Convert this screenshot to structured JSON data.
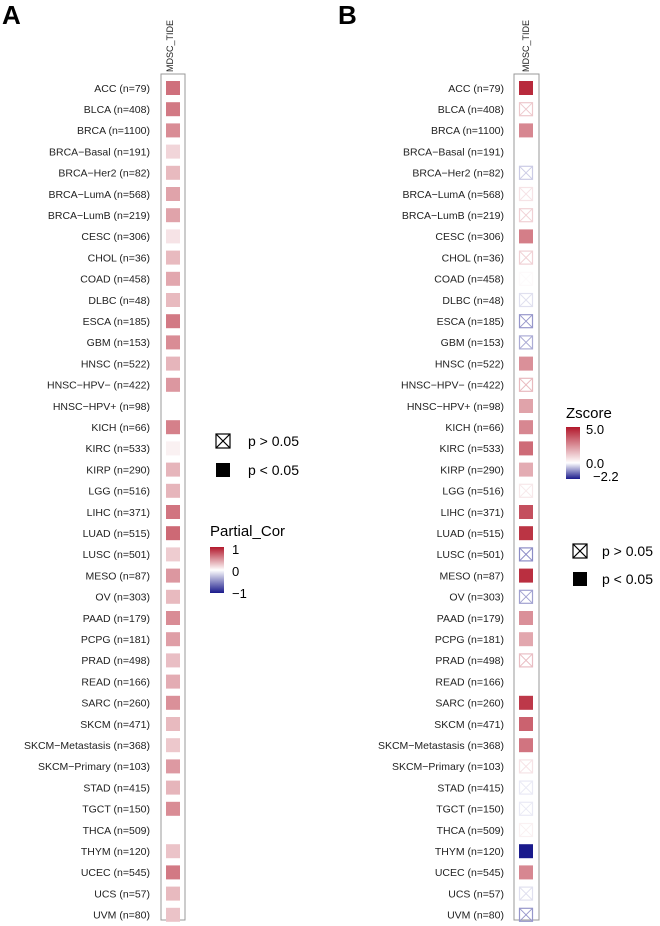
{
  "chart_data": [
    {
      "type": "heatmap",
      "panel": "A",
      "column": "MDSC_TIDE",
      "rows": [
        "ACC (n=79)",
        "BLCA (n=408)",
        "BRCA (n=1100)",
        "BRCA−Basal (n=191)",
        "BRCA−Her2 (n=82)",
        "BRCA−LumA (n=568)",
        "BRCA−LumB (n=219)",
        "CESC (n=306)",
        "CHOL (n=36)",
        "COAD (n=458)",
        "DLBC (n=48)",
        "ESCA (n=185)",
        "GBM (n=153)",
        "HNSC (n=522)",
        "HNSC−HPV− (n=422)",
        "HNSC−HPV+ (n=98)",
        "KICH (n=66)",
        "KIRC (n=533)",
        "KIRP (n=290)",
        "LGG (n=516)",
        "LIHC (n=371)",
        "LUAD (n=515)",
        "LUSC (n=501)",
        "MESO (n=87)",
        "OV (n=303)",
        "PAAD (n=179)",
        "PCPG (n=181)",
        "PRAD (n=498)",
        "READ (n=166)",
        "SARC (n=260)",
        "SKCM (n=471)",
        "SKCM−Metastasis (n=368)",
        "SKCM−Primary (n=103)",
        "STAD (n=415)",
        "TGCT (n=150)",
        "THCA (n=509)",
        "THYM (n=120)",
        "UCEC (n=545)",
        "UCS (n=57)",
        "UVM (n=80)"
      ],
      "values": [
        0.62,
        0.58,
        0.5,
        0.18,
        0.3,
        0.4,
        0.4,
        0.12,
        0.3,
        0.38,
        0.3,
        0.58,
        0.5,
        0.32,
        0.45,
        0.0,
        0.55,
        0.06,
        0.32,
        0.32,
        0.6,
        0.65,
        0.22,
        0.45,
        0.3,
        0.5,
        0.42,
        0.28,
        0.36,
        0.48,
        0.3,
        0.24,
        0.44,
        0.32,
        0.5,
        0.0,
        0.26,
        0.58,
        0.3,
        0.26
      ],
      "significant": [
        true,
        true,
        true,
        true,
        true,
        true,
        true,
        true,
        true,
        true,
        true,
        true,
        true,
        true,
        true,
        false,
        true,
        true,
        true,
        true,
        true,
        true,
        true,
        true,
        true,
        true,
        true,
        true,
        true,
        true,
        true,
        true,
        true,
        true,
        true,
        false,
        true,
        true,
        true,
        true
      ],
      "legend": {
        "title": "Partial_Cor",
        "ticks": [
          "1",
          "0",
          "−1"
        ],
        "range": [
          -1,
          1
        ],
        "key_nonsig": "p > 0.05",
        "key_sig": "p < 0.05"
      }
    },
    {
      "type": "heatmap",
      "panel": "B",
      "column": "MDSC_TIDE",
      "rows": [
        "ACC (n=79)",
        "BLCA (n=408)",
        "BRCA (n=1100)",
        "BRCA−Basal (n=191)",
        "BRCA−Her2 (n=82)",
        "BRCA−LumA (n=568)",
        "BRCA−LumB (n=219)",
        "CESC (n=306)",
        "CHOL (n=36)",
        "COAD (n=458)",
        "DLBC (n=48)",
        "ESCA (n=185)",
        "GBM (n=153)",
        "HNSC (n=522)",
        "HNSC−HPV− (n=422)",
        "HNSC−HPV+ (n=98)",
        "KICH (n=66)",
        "KIRC (n=533)",
        "KIRP (n=290)",
        "LGG (n=516)",
        "LIHC (n=371)",
        "LUAD (n=515)",
        "LUSC (n=501)",
        "MESO (n=87)",
        "OV (n=303)",
        "PAAD (n=179)",
        "PCPG (n=181)",
        "PRAD (n=498)",
        "READ (n=166)",
        "SARC (n=260)",
        "SKCM (n=471)",
        "SKCM−Metastasis (n=368)",
        "SKCM−Primary (n=103)",
        "STAD (n=415)",
        "TGCT (n=150)",
        "THCA (n=509)",
        "THYM (n=120)",
        "UCEC (n=545)",
        "UCS (n=57)",
        "UVM (n=80)"
      ],
      "values": [
        4.6,
        1.2,
        2.6,
        0.0,
        -0.5,
        0.6,
        1.0,
        2.8,
        1.0,
        0.1,
        -0.3,
        -1.0,
        -0.8,
        2.4,
        1.5,
        2.0,
        2.6,
        3.2,
        1.8,
        0.5,
        3.8,
        4.4,
        -1.1,
        4.5,
        -0.9,
        2.4,
        1.9,
        1.4,
        0.0,
        4.3,
        3.4,
        3.0,
        0.6,
        -0.2,
        -0.2,
        0.3,
        -2.2,
        2.6,
        -0.3,
        -1.0
      ],
      "significant": [
        true,
        false,
        true,
        false,
        false,
        false,
        false,
        true,
        false,
        false,
        false,
        false,
        false,
        true,
        false,
        true,
        true,
        true,
        true,
        false,
        true,
        true,
        false,
        true,
        false,
        true,
        true,
        false,
        false,
        true,
        true,
        true,
        false,
        false,
        false,
        false,
        true,
        true,
        false,
        false
      ],
      "legend": {
        "title": "Zscore",
        "ticks": [
          "5.0",
          "0.0",
          "−2.2"
        ],
        "range": [
          -2.2,
          5.0
        ],
        "key_nonsig": "p > 0.05",
        "key_sig": "p < 0.05"
      }
    }
  ],
  "colors": {
    "high": "#b2182b",
    "mid": "#ffffff",
    "low": "#1a1a8c",
    "frame": "#999999",
    "text": "#222222"
  }
}
